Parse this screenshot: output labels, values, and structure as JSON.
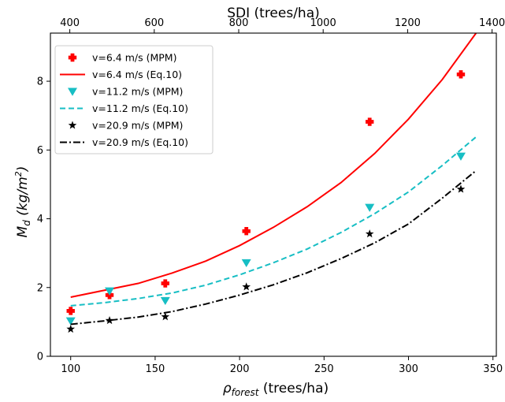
{
  "chart_data": {
    "type": "scatter",
    "xlabel": "ρ",
    "xlabel_sub": "forest",
    "xlabel_units": " (trees/ha)",
    "ylabel": "M",
    "ylabel_sub": "d",
    "ylabel_units": "  (kg/m",
    "ylabel_sup": "2",
    "ylabel_close": ")",
    "top_xlabel": "SDI (trees/ha)",
    "xlim": [
      88,
      352
    ],
    "ylim": [
      0,
      9.4
    ],
    "xticks": [
      100,
      150,
      200,
      250,
      300,
      350
    ],
    "yticks": [
      0,
      2,
      4,
      6,
      8
    ],
    "top_xticks": [
      400,
      600,
      800,
      1000,
      1200,
      1400
    ],
    "top_scale": {
      "coef": 4.0,
      "offset": 2.1
    },
    "legend_position": "upper-left",
    "grid": false,
    "series": [
      {
        "name": "v=6.4 m/s (MPM)",
        "kind": "markers",
        "marker": "plus",
        "color": "#ff0000",
        "x": [
          100,
          123,
          156,
          204,
          277,
          331
        ],
        "y": [
          1.32,
          1.78,
          2.12,
          3.64,
          6.82,
          8.2
        ]
      },
      {
        "name": "v=6.4 m/s (Eq.10)",
        "kind": "line",
        "dash": "solid",
        "color": "#ff0000",
        "x": [
          100,
          120,
          140,
          160,
          180,
          200,
          220,
          240,
          260,
          280,
          300,
          320,
          340
        ],
        "y": [
          1.72,
          1.92,
          2.12,
          2.42,
          2.77,
          3.22,
          3.75,
          4.35,
          5.05,
          5.9,
          6.9,
          8.05,
          9.4
        ]
      },
      {
        "name": "v=11.2 m/s (MPM)",
        "kind": "markers",
        "marker": "triangle-down",
        "color": "#17bec4",
        "x": [
          100,
          123,
          156,
          204,
          277,
          331
        ],
        "y": [
          1.03,
          1.9,
          1.62,
          2.72,
          4.33,
          5.82
        ]
      },
      {
        "name": "v=11.2 m/s (Eq.10)",
        "kind": "line",
        "dash": "dashed",
        "color": "#17bec4",
        "x": [
          100,
          120,
          140,
          160,
          180,
          200,
          220,
          240,
          260,
          280,
          300,
          320,
          340
        ],
        "y": [
          1.47,
          1.56,
          1.68,
          1.84,
          2.07,
          2.37,
          2.72,
          3.12,
          3.6,
          4.15,
          4.78,
          5.55,
          6.38
        ]
      },
      {
        "name": "v=20.9 m/s (MPM)",
        "kind": "markers",
        "marker": "star",
        "color": "#000000",
        "x": [
          100,
          123,
          156,
          204,
          277,
          331
        ],
        "y": [
          0.79,
          1.04,
          1.15,
          2.02,
          3.56,
          4.86
        ]
      },
      {
        "name": "v=20.9 m/s (Eq.10)",
        "kind": "line",
        "dash": "dashdot",
        "color": "#000000",
        "x": [
          100,
          120,
          140,
          160,
          180,
          200,
          220,
          240,
          260,
          280,
          300,
          320,
          340
        ],
        "y": [
          0.93,
          1.03,
          1.14,
          1.3,
          1.52,
          1.78,
          2.08,
          2.43,
          2.84,
          3.3,
          3.85,
          4.6,
          5.4
        ]
      }
    ]
  }
}
